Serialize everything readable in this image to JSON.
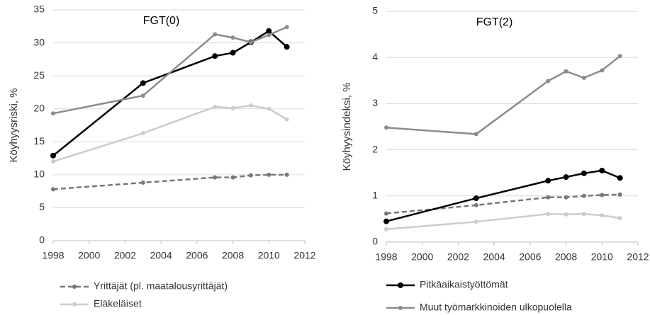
{
  "chart_data": [
    {
      "type": "line",
      "annotation": "FGT(0)",
      "y_label": "Köyhyysriski, %",
      "x": [
        1998,
        2003,
        2007,
        2008,
        2009,
        2010,
        2011
      ],
      "xlim": [
        1998,
        2012
      ],
      "xticks": [
        1998,
        2000,
        2002,
        2004,
        2006,
        2008,
        2010,
        2012
      ],
      "ylim": [
        0,
        35
      ],
      "yticks": [
        0,
        5,
        10,
        15,
        20,
        25,
        30,
        35
      ],
      "grid": true,
      "series": [
        {
          "name": "Yrittäjät (pl. maatalousyrittäjät)",
          "color": "#777777",
          "dashed": true,
          "values": [
            7.8,
            8.8,
            9.6,
            9.6,
            9.9,
            10.0,
            10.0
          ]
        },
        {
          "name": "Eläkeläiset",
          "color": "#cccccc",
          "values": [
            12.0,
            16.3,
            20.3,
            20.1,
            20.5,
            20.0,
            18.4
          ]
        },
        {
          "color": "#000000",
          "values": [
            12.9,
            23.9,
            28.0,
            28.5,
            30.1,
            31.8,
            29.4
          ]
        },
        {
          "color": "#8c8c8c",
          "values": [
            19.3,
            22.0,
            31.3,
            30.8,
            30.1,
            31.2,
            32.4
          ]
        }
      ]
    },
    {
      "type": "line",
      "annotation": "FGT(2)",
      "y_label": "Köyhyysindeksi, %",
      "x": [
        1998,
        2003,
        2007,
        2008,
        2009,
        2010,
        2011
      ],
      "xlim": [
        1998,
        2012
      ],
      "xticks": [
        1998,
        2000,
        2002,
        2004,
        2006,
        2008,
        2010,
        2012
      ],
      "ylim": [
        0,
        5
      ],
      "yticks": [
        0,
        1,
        2,
        3,
        4,
        5
      ],
      "grid": true,
      "series": [
        {
          "color": "#777777",
          "dashed": true,
          "values": [
            0.62,
            0.8,
            0.97,
            0.97,
            1.0,
            1.02,
            1.03
          ]
        },
        {
          "color": "#cccccc",
          "values": [
            0.28,
            0.44,
            0.61,
            0.6,
            0.61,
            0.58,
            0.52
          ]
        },
        {
          "name": "Pitkäaikaistyöttömät",
          "color": "#000000",
          "values": [
            0.45,
            0.95,
            1.33,
            1.41,
            1.49,
            1.55,
            1.39
          ]
        },
        {
          "name": "Muut työmarkkinoiden ulkopuolella",
          "color": "#8c8c8c",
          "values": [
            2.48,
            2.34,
            3.49,
            3.7,
            3.56,
            3.72,
            4.03
          ]
        }
      ]
    }
  ]
}
